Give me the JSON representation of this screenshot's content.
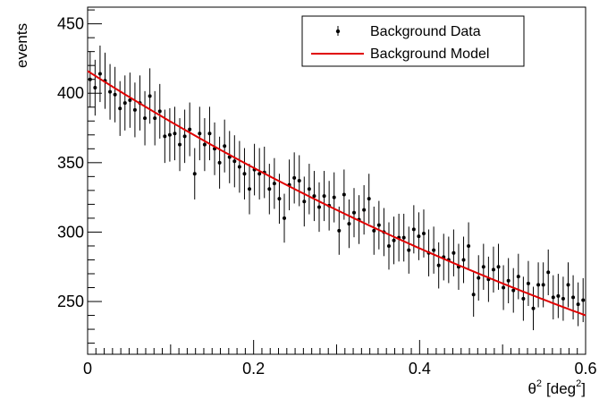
{
  "chart_data": {
    "type": "scatter",
    "title": "",
    "xlabel_main": "θ",
    "xlabel_sup": "2",
    "xlabel_unit": "[deg",
    "xlabel_unit_sup": "2",
    "xlabel_close": "]",
    "ylabel": "events",
    "xlim": [
      0,
      0.6
    ],
    "ylim": [
      212,
      462
    ],
    "xticks": [
      0,
      0.2,
      0.4,
      0.6
    ],
    "xtick_labels": [
      "0",
      "0.2",
      "0.4",
      "0.6"
    ],
    "yticks": [
      250,
      300,
      350,
      400,
      450
    ],
    "ytick_labels": [
      "250",
      "300",
      "350",
      "400",
      "450"
    ],
    "legend": {
      "position": "top-right",
      "entries": [
        "Background Data",
        "Background Model"
      ]
    },
    "colors": {
      "data": "#000000",
      "model": "#e00000"
    },
    "series": [
      {
        "name": "Background Data",
        "x": [
          0.003,
          0.009,
          0.015,
          0.021,
          0.027,
          0.033,
          0.039,
          0.045,
          0.051,
          0.057,
          0.063,
          0.069,
          0.075,
          0.081,
          0.087,
          0.093,
          0.099,
          0.105,
          0.111,
          0.117,
          0.123,
          0.129,
          0.135,
          0.141,
          0.147,
          0.153,
          0.159,
          0.165,
          0.171,
          0.177,
          0.183,
          0.189,
          0.195,
          0.201,
          0.207,
          0.213,
          0.219,
          0.225,
          0.231,
          0.237,
          0.243,
          0.249,
          0.255,
          0.261,
          0.267,
          0.273,
          0.279,
          0.285,
          0.291,
          0.297,
          0.303,
          0.309,
          0.315,
          0.321,
          0.327,
          0.333,
          0.339,
          0.345,
          0.351,
          0.357,
          0.363,
          0.369,
          0.375,
          0.381,
          0.387,
          0.393,
          0.399,
          0.405,
          0.411,
          0.417,
          0.423,
          0.429,
          0.435,
          0.441,
          0.447,
          0.453,
          0.459,
          0.465,
          0.471,
          0.477,
          0.483,
          0.489,
          0.495,
          0.501,
          0.507,
          0.513,
          0.519,
          0.525,
          0.531,
          0.537,
          0.543,
          0.549,
          0.555,
          0.561,
          0.567,
          0.573,
          0.579,
          0.585,
          0.591,
          0.597
        ],
        "y": [
          410,
          404,
          414,
          409,
          401,
          399,
          389,
          393,
          395,
          388,
          393,
          382,
          398,
          382,
          387,
          369,
          370,
          371,
          363,
          369,
          374,
          342,
          371,
          363,
          371,
          360,
          350,
          362,
          354,
          351,
          347,
          342,
          331,
          345,
          342,
          343,
          331,
          335,
          324,
          310,
          334,
          339,
          337,
          322,
          331,
          326,
          318,
          326,
          319,
          325,
          301,
          327,
          306,
          314,
          309,
          316,
          324,
          301,
          305,
          300,
          290,
          294,
          296,
          296,
          287,
          302,
          297,
          299,
          285,
          287,
          276,
          282,
          280,
          285,
          275,
          280,
          290,
          255,
          267,
          275,
          266,
          273,
          275,
          260,
          265,
          258,
          268,
          252,
          263,
          245,
          262,
          262,
          271,
          253,
          254,
          252,
          262,
          253,
          248,
          251
        ]
      },
      {
        "name": "Background Model",
        "x": [
          0,
          0.6
        ],
        "y0": 416,
        "y_end": 240,
        "form": "exponential"
      }
    ]
  }
}
